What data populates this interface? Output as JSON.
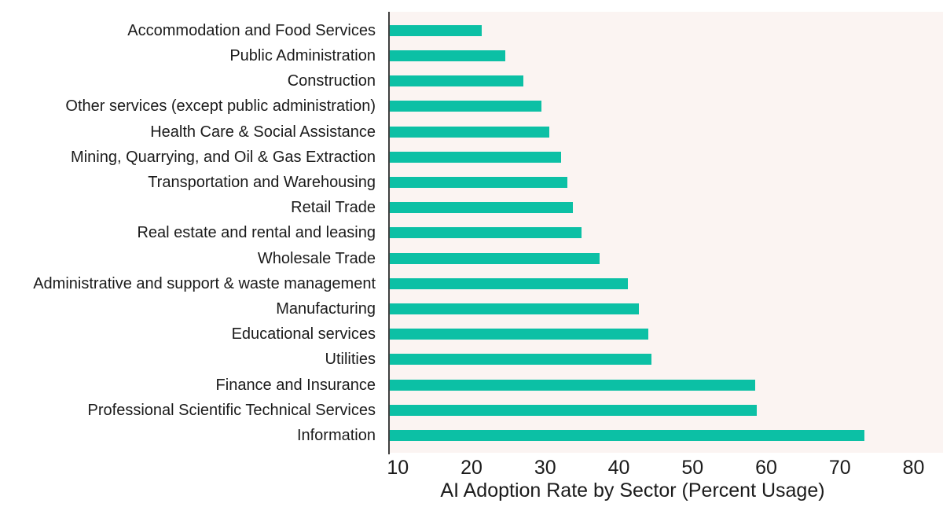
{
  "chart_data": {
    "type": "bar",
    "orientation": "horizontal",
    "title": "",
    "xlabel": "AI Adoption Rate by Sector (Percent Usage)",
    "ylabel": "",
    "categories": [
      "Accommodation and Food Services",
      "Public Administration",
      "Construction",
      "Other services (except public administration)",
      "Health Care & Social Assistance",
      "Mining, Quarrying, and Oil & Gas Extraction",
      "Transportation and Warehousing",
      "Retail Trade",
      "Real estate and rental and leasing",
      "Wholesale Trade",
      "Administrative and support & waste management",
      "Manufacturing",
      "Educational services",
      "Utilities",
      "Finance and Insurance",
      "Professional Scientific Technical Services",
      "Information"
    ],
    "values": [
      21.3,
      24.5,
      26.9,
      29.4,
      30.4,
      32.0,
      32.9,
      33.7,
      34.8,
      37.3,
      41.1,
      42.6,
      43.9,
      44.3,
      58.4,
      58.6,
      73.2
    ],
    "x_axis": {
      "min": 8.8,
      "max": 84,
      "ticks": [
        10,
        20,
        30,
        40,
        50,
        60,
        70,
        80
      ]
    },
    "grid": false,
    "legend": "none",
    "colors": {
      "bar": "#0cc0a5",
      "plot_background": "#fbf4f2",
      "figure_background": "#ffffff",
      "axis_line": "#3f3f3f",
      "text": "#1b1b1b"
    }
  }
}
